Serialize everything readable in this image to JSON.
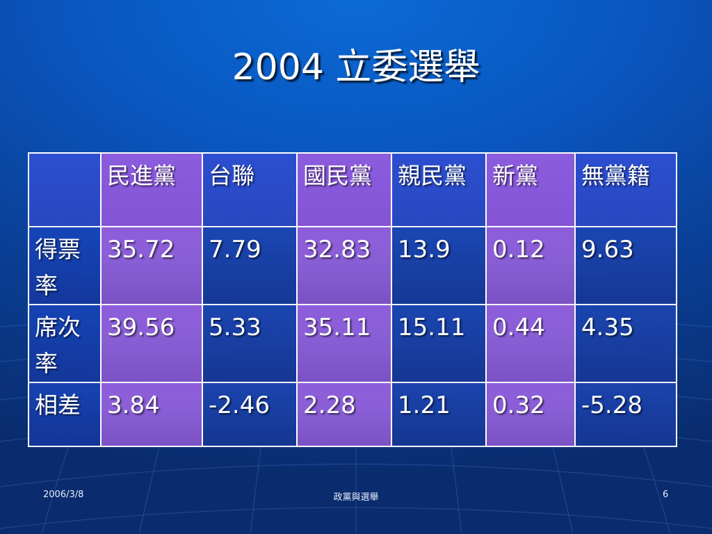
{
  "slide": {
    "title": "2004 立委選舉"
  },
  "table": {
    "headers": [
      "",
      "民進黨",
      "台聯",
      "國民黨",
      "親民黨",
      "新黨",
      "無黨籍"
    ],
    "rows": [
      {
        "label": "得票率",
        "cells": [
          "35.72",
          "7.79",
          "32.83",
          "13.9",
          "0.12",
          "9.63"
        ]
      },
      {
        "label": "席次率",
        "cells": [
          "39.56",
          "5.33",
          "35.11",
          "15.11",
          "0.44",
          "4.35"
        ]
      },
      {
        "label": "相差",
        "cells": [
          "3.84",
          "-2.46",
          "2.28",
          "1.21",
          "0.32",
          "-5.28"
        ]
      }
    ]
  },
  "footer": {
    "date": "2006/3/8",
    "center": "政黨與選舉",
    "page": "6"
  },
  "colors": {
    "background": "#0a55bd",
    "purple_column": "#8a5fd6",
    "blue_column": "#2748c0",
    "border": "#ffffff"
  }
}
